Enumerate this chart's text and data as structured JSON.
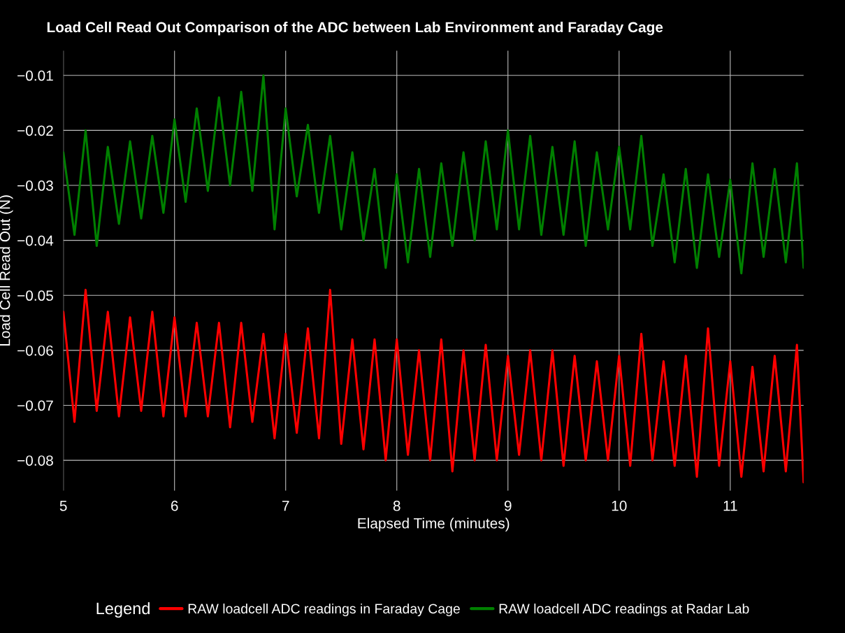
{
  "chart_data": {
    "type": "line",
    "title": "Load Cell Read Out Comparison of the ADC between Lab Environment and Faraday Cage",
    "xlabel": "Elapsed Time (minutes)",
    "ylabel": "Load Cell Read Out (N)",
    "legend_title": "Legend",
    "legend": "bottom",
    "grid": true,
    "line_style": "solid",
    "x": [
      5.0,
      5.1,
      5.2,
      5.3,
      5.4,
      5.5,
      5.6,
      5.7,
      5.8,
      5.9,
      6.0,
      6.1,
      6.2,
      6.3,
      6.4,
      6.5,
      6.6,
      6.7,
      6.8,
      6.9,
      7.0,
      7.1,
      7.2,
      7.3,
      7.4,
      7.5,
      7.6,
      7.7,
      7.8,
      7.9,
      8.0,
      8.1,
      8.2,
      8.3,
      8.4,
      8.5,
      8.6,
      8.7,
      8.8,
      8.9,
      9.0,
      9.1,
      9.2,
      9.3,
      9.4,
      9.5,
      9.6,
      9.7,
      9.8,
      9.9,
      10.0,
      10.1,
      10.2,
      10.3,
      10.4,
      10.5,
      10.6,
      10.7,
      10.8,
      10.9,
      11.0,
      11.1,
      11.2,
      11.3,
      11.4,
      11.5,
      11.6,
      11.66
    ],
    "xlim": [
      5,
      11.66
    ],
    "xticks": [
      5,
      6,
      7,
      8,
      9,
      10,
      11
    ],
    "ylim": [
      -0.0855,
      -0.0055
    ],
    "yticks": [
      {
        "value": -0.08,
        "label": "−0.08"
      },
      {
        "value": -0.07,
        "label": "−0.07"
      },
      {
        "value": -0.06,
        "label": "−0.06"
      },
      {
        "value": -0.05,
        "label": "−0.05"
      },
      {
        "value": -0.04,
        "label": "−0.04"
      },
      {
        "value": -0.03,
        "label": "−0.03"
      },
      {
        "value": -0.02,
        "label": "−0.02"
      },
      {
        "value": -0.01,
        "label": "−0.01"
      }
    ],
    "series": [
      {
        "name": "RAW loadcell ADC readings in Faraday Cage",
        "color": "#ff0000",
        "values": [
          -0.053,
          -0.073,
          -0.049,
          -0.071,
          -0.053,
          -0.072,
          -0.054,
          -0.071,
          -0.053,
          -0.072,
          -0.054,
          -0.072,
          -0.055,
          -0.072,
          -0.055,
          -0.074,
          -0.055,
          -0.073,
          -0.057,
          -0.076,
          -0.057,
          -0.075,
          -0.056,
          -0.076,
          -0.049,
          -0.077,
          -0.058,
          -0.078,
          -0.058,
          -0.08,
          -0.058,
          -0.079,
          -0.06,
          -0.08,
          -0.058,
          -0.082,
          -0.06,
          -0.08,
          -0.059,
          -0.08,
          -0.061,
          -0.079,
          -0.06,
          -0.08,
          -0.06,
          -0.081,
          -0.061,
          -0.08,
          -0.062,
          -0.08,
          -0.061,
          -0.081,
          -0.057,
          -0.08,
          -0.062,
          -0.081,
          -0.061,
          -0.083,
          -0.056,
          -0.081,
          -0.062,
          -0.083,
          -0.063,
          -0.082,
          -0.061,
          -0.082,
          -0.059,
          -0.084
        ]
      },
      {
        "name": "RAW loadcell ADC readings at Radar Lab",
        "color": "#008000",
        "values": [
          -0.024,
          -0.039,
          -0.02,
          -0.041,
          -0.023,
          -0.037,
          -0.022,
          -0.036,
          -0.021,
          -0.035,
          -0.018,
          -0.033,
          -0.016,
          -0.031,
          -0.014,
          -0.03,
          -0.013,
          -0.031,
          -0.01,
          -0.038,
          -0.016,
          -0.032,
          -0.019,
          -0.035,
          -0.021,
          -0.038,
          -0.024,
          -0.04,
          -0.027,
          -0.045,
          -0.028,
          -0.044,
          -0.027,
          -0.043,
          -0.026,
          -0.041,
          -0.024,
          -0.04,
          -0.022,
          -0.038,
          -0.02,
          -0.038,
          -0.021,
          -0.039,
          -0.023,
          -0.039,
          -0.022,
          -0.041,
          -0.024,
          -0.038,
          -0.023,
          -0.038,
          -0.021,
          -0.041,
          -0.028,
          -0.044,
          -0.027,
          -0.045,
          -0.028,
          -0.043,
          -0.029,
          -0.046,
          -0.026,
          -0.043,
          -0.027,
          -0.044,
          -0.026,
          -0.045
        ]
      }
    ]
  }
}
